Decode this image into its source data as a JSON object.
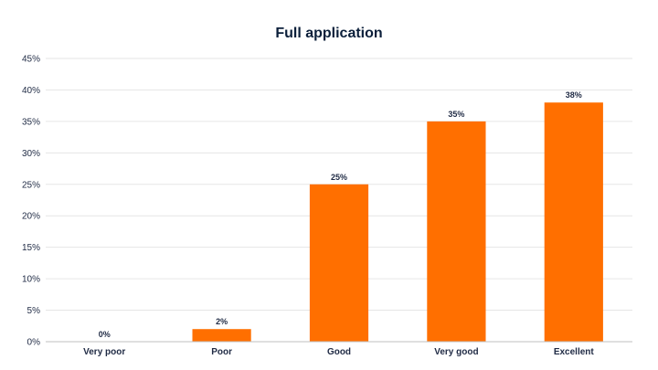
{
  "chart_data": {
    "type": "bar",
    "title": "Full application",
    "categories": [
      "Very poor",
      "Poor",
      "Good",
      "Very good",
      "Excellent"
    ],
    "values": [
      0,
      2,
      25,
      35,
      38
    ],
    "data_labels": [
      "0%",
      "2%",
      "25%",
      "35%",
      "38%"
    ],
    "xlabel": "",
    "ylabel": "",
    "ylim": [
      0,
      45
    ],
    "y_ticks": [
      0,
      5,
      10,
      15,
      20,
      25,
      30,
      35,
      40,
      45
    ],
    "y_tick_labels": [
      "0%",
      "5%",
      "10%",
      "15%",
      "20%",
      "25%",
      "30%",
      "35%",
      "40%",
      "45%"
    ],
    "grid": true,
    "bar_color": "#ff6f00"
  }
}
